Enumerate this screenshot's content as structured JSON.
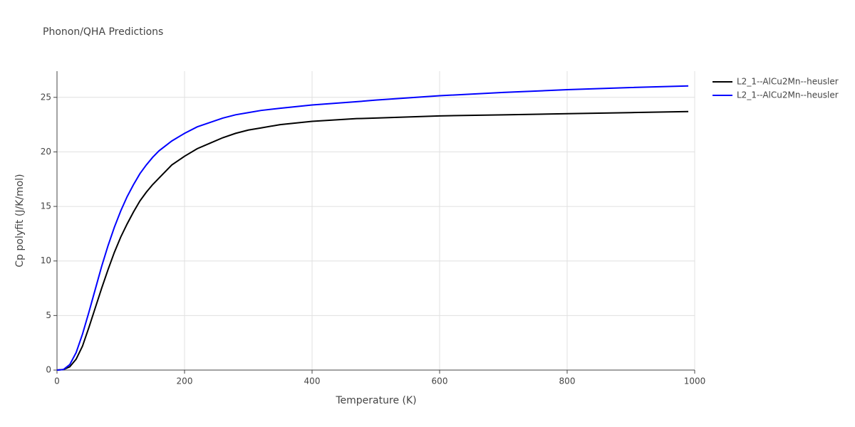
{
  "chart_data": {
    "type": "line",
    "title": "Phonon/QHA Predictions",
    "x_label": "Temperature (K)",
    "y_label": "Cp polyfit (J/K/mol)",
    "x": [
      0,
      10,
      20,
      30,
      40,
      50,
      60,
      70,
      80,
      90,
      100,
      110,
      120,
      130,
      140,
      150,
      160,
      180,
      200,
      220,
      240,
      260,
      280,
      300,
      320,
      350,
      400,
      470,
      500,
      600,
      700,
      800,
      900,
      990
    ],
    "series": [
      {
        "name": "L2_1--AlCu2Mn--heusler",
        "color": "#000000",
        "values": [
          0,
          0.05,
          0.3,
          1.0,
          2.2,
          3.9,
          5.7,
          7.5,
          9.2,
          10.8,
          12.2,
          13.4,
          14.5,
          15.5,
          16.3,
          17.0,
          17.6,
          18.8,
          19.6,
          20.3,
          20.8,
          21.3,
          21.7,
          22.0,
          22.2,
          22.5,
          22.8,
          23.05,
          23.1,
          23.3,
          23.4,
          23.5,
          23.6,
          23.7
        ]
      },
      {
        "name": "L2_1--AlCu2Mn--heusler",
        "color": "#0000ff",
        "values": [
          0,
          0.05,
          0.5,
          1.6,
          3.3,
          5.3,
          7.4,
          9.5,
          11.4,
          13.1,
          14.6,
          15.9,
          17.0,
          18.0,
          18.8,
          19.5,
          20.1,
          21.0,
          21.7,
          22.3,
          22.7,
          23.1,
          23.4,
          23.6,
          23.8,
          24.0,
          24.3,
          24.6,
          24.75,
          25.15,
          25.45,
          25.7,
          25.9,
          26.05
        ]
      }
    ],
    "xlim": [
      0,
      1000
    ],
    "xticks": [
      0,
      200,
      400,
      600,
      800,
      1000
    ],
    "ylim": [
      0,
      27.4
    ],
    "yticks": [
      0,
      5,
      10,
      15,
      20,
      25
    ],
    "grid": true,
    "legend": "top-right"
  }
}
